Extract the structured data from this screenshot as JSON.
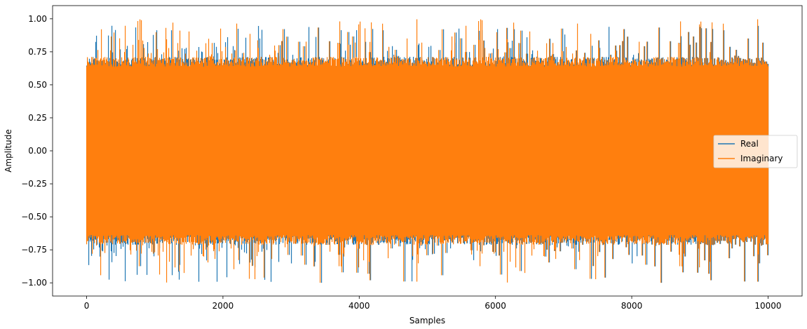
{
  "chart_data": {
    "type": "line",
    "title": "",
    "xlabel": "Samples",
    "ylabel": "Amplitude",
    "xlim": [
      -500,
      10500
    ],
    "ylim": [
      -1.1,
      1.1
    ],
    "x_ticks": [
      0,
      2000,
      4000,
      6000,
      8000,
      10000
    ],
    "x_tick_labels": [
      "0",
      "2000",
      "4000",
      "6000",
      "8000",
      "10000"
    ],
    "y_ticks": [
      -1.0,
      -0.75,
      -0.5,
      -0.25,
      0.0,
      0.25,
      0.5,
      0.75,
      1.0
    ],
    "y_tick_labels": [
      "−1.00",
      "−0.75",
      "−0.50",
      "−0.25",
      "0.00",
      "0.25",
      "0.50",
      "0.75",
      "1.00"
    ],
    "grid": false,
    "legend_placement": "center-right",
    "x_range": [
      0,
      10000
    ],
    "series": [
      {
        "name": "Real",
        "color": "#1f77b4",
        "sample_count": 10000,
        "typical_range": [
          -0.75,
          0.75
        ],
        "min": -1.0,
        "max": 0.95
      },
      {
        "name": "Imaginary",
        "color": "#ff7f0e",
        "sample_count": 10000,
        "typical_range": [
          -0.75,
          0.75
        ],
        "min": -1.0,
        "max": 1.0
      }
    ]
  }
}
